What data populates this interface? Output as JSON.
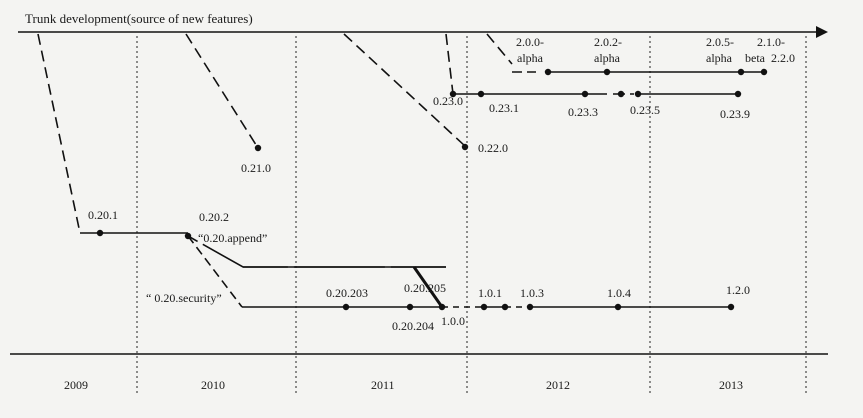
{
  "diagram": {
    "trunk_label": "Trunk development(source of new features)",
    "years": [
      "2009",
      "2010",
      "2011",
      "2012",
      "2013"
    ],
    "branch_labels": {
      "append": "“0.20.append”",
      "security": "“ 0.20.security”"
    },
    "releases": {
      "r_0_20_1": "0.20.1",
      "r_0_20_2": "0.20.2",
      "r_0_21_0": "0.21.0",
      "r_0_22_0": "0.22.0",
      "r_0_23_0": "0.23.0",
      "r_0_23_1": "0.23.1",
      "r_0_23_3": "0.23.3",
      "r_0_23_5": "0.23.5",
      "r_0_23_9": "0.23.9",
      "r_2_0_0_a": "2.0.0-",
      "r_2_0_0_b": "alpha",
      "r_2_0_2_a": "2.0.2-",
      "r_2_0_2_b": "alpha",
      "r_2_0_5_a": "2.0.5-",
      "r_2_0_5_b": "alpha",
      "r_2_1_0_a": "2.1.0-",
      "r_2_1_0_b": "beta",
      "r_2_2_0": "2.2.0",
      "r_0_20_203": "0.20.203",
      "r_0_20_204": "0.20.204",
      "r_0_20_205": "0.20.205",
      "r_1_0_0": "1.0.0",
      "r_1_0_1": "1.0.1",
      "r_1_0_3": "1.0.3",
      "r_1_0_4": "1.0.4",
      "r_1_2_0": "1.2.0"
    }
  }
}
